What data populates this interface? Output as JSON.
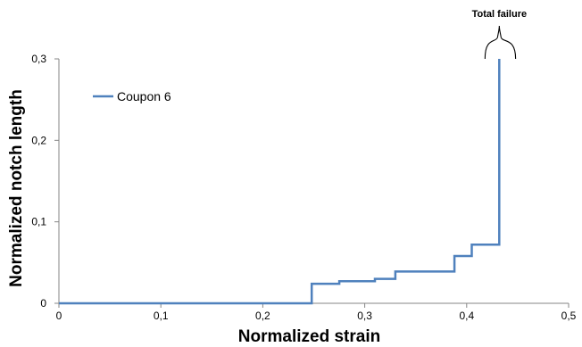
{
  "chart_data": {
    "type": "line",
    "title": "",
    "xlabel": "Normalized strain",
    "ylabel": "Normalized notch length",
    "xlim": [
      0,
      0.5
    ],
    "ylim": [
      0,
      0.3
    ],
    "x_ticks": [
      "0",
      "0,1",
      "0,2",
      "0,3",
      "0,4",
      "0,5"
    ],
    "y_ticks": [
      "0",
      "0,1",
      "0,2",
      "0,3"
    ],
    "grid": false,
    "legend_position": "top-left",
    "series": [
      {
        "name": "Coupon 6",
        "color": "#4F81BD",
        "step": true,
        "points": [
          [
            0,
            0
          ],
          [
            0.248,
            0
          ],
          [
            0.248,
            0.024
          ],
          [
            0.275,
            0.024
          ],
          [
            0.275,
            0.027
          ],
          [
            0.31,
            0.027
          ],
          [
            0.31,
            0.03
          ],
          [
            0.33,
            0.03
          ],
          [
            0.33,
            0.039
          ],
          [
            0.388,
            0.039
          ],
          [
            0.388,
            0.058
          ],
          [
            0.405,
            0.058
          ],
          [
            0.405,
            0.072
          ],
          [
            0.432,
            0.072
          ],
          [
            0.432,
            0.3
          ]
        ]
      }
    ],
    "annotations": [
      {
        "text": "Total failure",
        "x": 0.432,
        "brace_from": 0.418,
        "brace_to": 0.448
      }
    ]
  }
}
